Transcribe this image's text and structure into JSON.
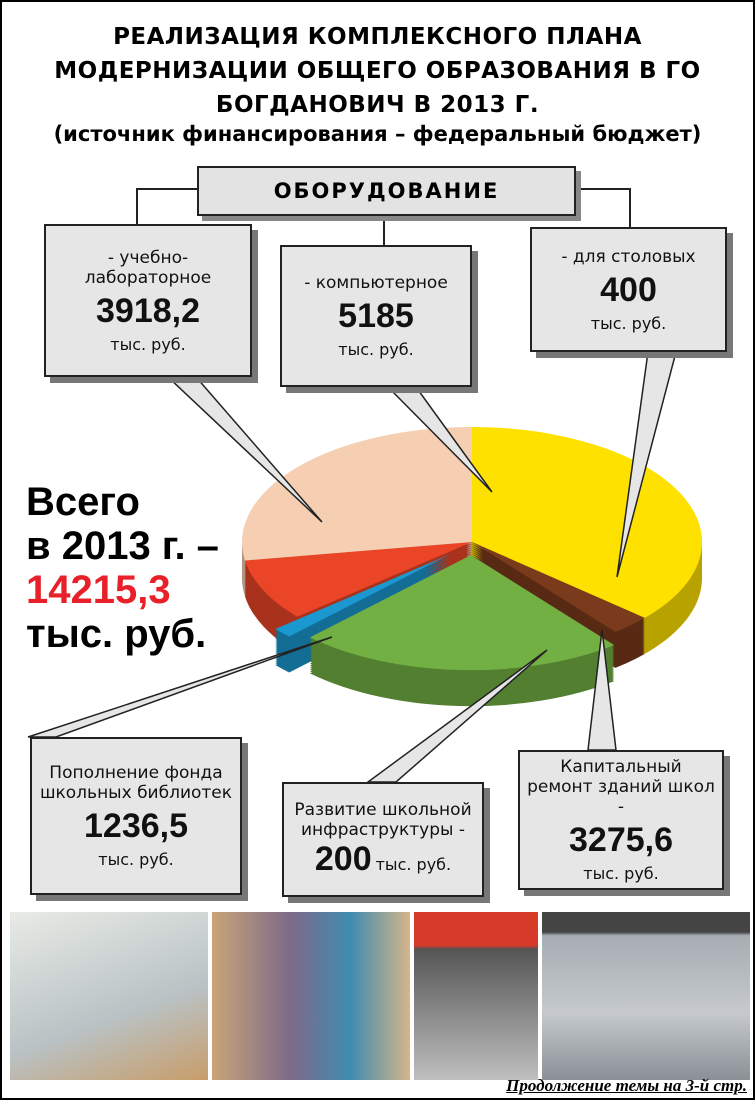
{
  "chart_data": {
    "type": "pie",
    "title": "РЕАЛИЗАЦИЯ КОМПЛЕКСНОГО ПЛАНА МОДЕРНИЗАЦИИ ОБЩЕГО ОБРАЗОВАНИЯ В ГО БОГДАНОВИЧ В 2013 Г.",
    "subtitle": "(источник финансирования – федеральный бюджет)",
    "group_label": "ОБОРУДОВАНИЕ",
    "categories": [
      "- компьютерное",
      "- для столовых",
      "Капитальный ремонт зданий школ -",
      "Развитие школьной инфраструктуры -",
      "Пополнение фонда школьных библиотек",
      "- учебно-лабораторное"
    ],
    "values": [
      5185,
      400,
      3275.6,
      200,
      1236.5,
      3918.2
    ],
    "value_labels": [
      "5185",
      "400",
      "3275,6",
      "200",
      "1236,5",
      "3918,2"
    ],
    "colors": [
      "#ffe100",
      "#7a3a1c",
      "#72b043",
      "#1a98cf",
      "#ea4527",
      "#f6cfb2"
    ],
    "unit": "тыс. руб.",
    "annotations": [
      "Всего",
      "в 2013 г. –",
      "14215,3",
      "тыс. руб."
    ],
    "footer": "Продолжение темы на 3-й стр."
  }
}
